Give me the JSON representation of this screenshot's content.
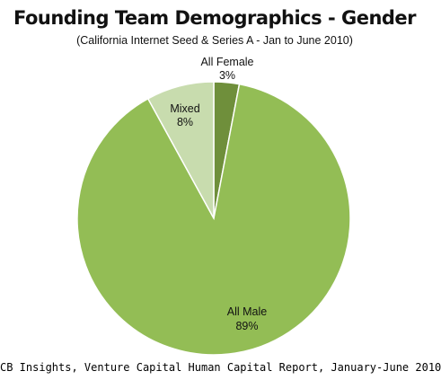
{
  "chart_data": {
    "type": "pie",
    "title": "Founding Team Demographics - Gender",
    "subtitle": "(California Internet Seed & Series A -  Jan to June 2010)",
    "slices": [
      {
        "label": "All Female",
        "value": 3,
        "value_label": "3%",
        "color": "#6f8f3b"
      },
      {
        "label": "All Male",
        "value": 89,
        "value_label": "89%",
        "color": "#93bd55"
      },
      {
        "label": "Mixed",
        "value": 8,
        "value_label": "8%",
        "color": "#c8dcae"
      }
    ],
    "start": "12 o'clock",
    "direction": "clockwise",
    "slice_border_color": "#ffffff"
  },
  "source": "CB Insights, Venture Capital Human Capital Report, January-June 2010"
}
